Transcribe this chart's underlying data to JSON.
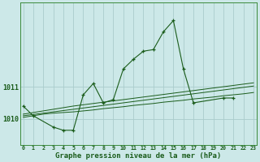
{
  "bg_color": "#cce8e8",
  "grid_color": "#aacccc",
  "line_color": "#1a5c1a",
  "marker_color": "#1a5c1a",
  "title": "Graphe pression niveau de la mer (hPa)",
  "xlabel_fontsize": 6.5,
  "hours": [
    0,
    1,
    2,
    3,
    4,
    5,
    6,
    7,
    8,
    9,
    10,
    11,
    12,
    13,
    14,
    15,
    16,
    17,
    18,
    19,
    20,
    21,
    22,
    23
  ],
  "series": {
    "main": [
      1010.4,
      1010.1,
      null,
      1009.75,
      1009.65,
      1009.65,
      1010.75,
      1011.1,
      1010.5,
      1010.6,
      1011.55,
      1011.85,
      1012.1,
      1012.15,
      1012.7,
      1013.05,
      1011.55,
      1010.5,
      null,
      null,
      1010.65,
      1010.65,
      null,
      null
    ],
    "line2": [
      1010.05,
      1010.1,
      1010.15,
      1010.18,
      1010.2,
      1010.22,
      1010.25,
      1010.28,
      1010.32,
      1010.35,
      1010.38,
      1010.42,
      1010.45,
      1010.48,
      1010.52,
      1010.55,
      1010.58,
      1010.62,
      1010.65,
      1010.68,
      1010.72,
      1010.75,
      1010.78,
      1010.82
    ],
    "line3": [
      1010.1,
      1010.14,
      1010.18,
      1010.22,
      1010.26,
      1010.3,
      1010.34,
      1010.38,
      1010.42,
      1010.46,
      1010.5,
      1010.54,
      1010.58,
      1010.62,
      1010.66,
      1010.7,
      1010.74,
      1010.78,
      1010.82,
      1010.86,
      1010.9,
      1010.94,
      1010.98,
      1011.02
    ],
    "line4": [
      1010.15,
      1010.2,
      1010.25,
      1010.3,
      1010.35,
      1010.4,
      1010.44,
      1010.48,
      1010.52,
      1010.56,
      1010.6,
      1010.64,
      1010.68,
      1010.72,
      1010.76,
      1010.8,
      1010.84,
      1010.88,
      1010.92,
      1010.96,
      1011.0,
      1011.04,
      1011.08,
      1011.12
    ]
  },
  "ytick_labels": [
    "1010",
    "1011"
  ],
  "ytick_values": [
    1010,
    1011
  ],
  "ylim": [
    1009.2,
    1013.6
  ],
  "xlim": [
    -0.3,
    23.3
  ]
}
